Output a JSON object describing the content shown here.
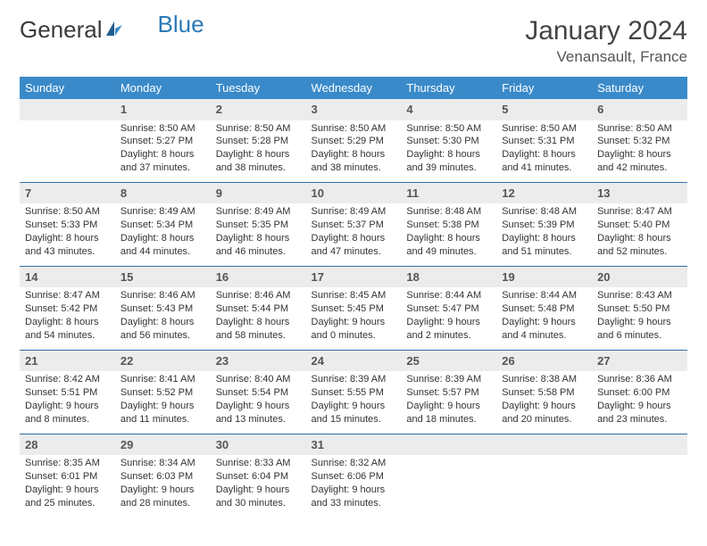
{
  "brand": {
    "part1": "General",
    "part2": "Blue"
  },
  "title": "January 2024",
  "location": "Venansault, France",
  "header_color": "#3a8ac9",
  "border_color": "#2a6ea8",
  "daynum_bg": "#ececec",
  "weekdays": [
    "Sunday",
    "Monday",
    "Tuesday",
    "Wednesday",
    "Thursday",
    "Friday",
    "Saturday"
  ],
  "weeks": [
    [
      null,
      {
        "n": "1",
        "sr": "8:50 AM",
        "ss": "5:27 PM",
        "dl": "8 hours and 37 minutes."
      },
      {
        "n": "2",
        "sr": "8:50 AM",
        "ss": "5:28 PM",
        "dl": "8 hours and 38 minutes."
      },
      {
        "n": "3",
        "sr": "8:50 AM",
        "ss": "5:29 PM",
        "dl": "8 hours and 38 minutes."
      },
      {
        "n": "4",
        "sr": "8:50 AM",
        "ss": "5:30 PM",
        "dl": "8 hours and 39 minutes."
      },
      {
        "n": "5",
        "sr": "8:50 AM",
        "ss": "5:31 PM",
        "dl": "8 hours and 41 minutes."
      },
      {
        "n": "6",
        "sr": "8:50 AM",
        "ss": "5:32 PM",
        "dl": "8 hours and 42 minutes."
      }
    ],
    [
      {
        "n": "7",
        "sr": "8:50 AM",
        "ss": "5:33 PM",
        "dl": "8 hours and 43 minutes."
      },
      {
        "n": "8",
        "sr": "8:49 AM",
        "ss": "5:34 PM",
        "dl": "8 hours and 44 minutes."
      },
      {
        "n": "9",
        "sr": "8:49 AM",
        "ss": "5:35 PM",
        "dl": "8 hours and 46 minutes."
      },
      {
        "n": "10",
        "sr": "8:49 AM",
        "ss": "5:37 PM",
        "dl": "8 hours and 47 minutes."
      },
      {
        "n": "11",
        "sr": "8:48 AM",
        "ss": "5:38 PM",
        "dl": "8 hours and 49 minutes."
      },
      {
        "n": "12",
        "sr": "8:48 AM",
        "ss": "5:39 PM",
        "dl": "8 hours and 51 minutes."
      },
      {
        "n": "13",
        "sr": "8:47 AM",
        "ss": "5:40 PM",
        "dl": "8 hours and 52 minutes."
      }
    ],
    [
      {
        "n": "14",
        "sr": "8:47 AM",
        "ss": "5:42 PM",
        "dl": "8 hours and 54 minutes."
      },
      {
        "n": "15",
        "sr": "8:46 AM",
        "ss": "5:43 PM",
        "dl": "8 hours and 56 minutes."
      },
      {
        "n": "16",
        "sr": "8:46 AM",
        "ss": "5:44 PM",
        "dl": "8 hours and 58 minutes."
      },
      {
        "n": "17",
        "sr": "8:45 AM",
        "ss": "5:45 PM",
        "dl": "9 hours and 0 minutes."
      },
      {
        "n": "18",
        "sr": "8:44 AM",
        "ss": "5:47 PM",
        "dl": "9 hours and 2 minutes."
      },
      {
        "n": "19",
        "sr": "8:44 AM",
        "ss": "5:48 PM",
        "dl": "9 hours and 4 minutes."
      },
      {
        "n": "20",
        "sr": "8:43 AM",
        "ss": "5:50 PM",
        "dl": "9 hours and 6 minutes."
      }
    ],
    [
      {
        "n": "21",
        "sr": "8:42 AM",
        "ss": "5:51 PM",
        "dl": "9 hours and 8 minutes."
      },
      {
        "n": "22",
        "sr": "8:41 AM",
        "ss": "5:52 PM",
        "dl": "9 hours and 11 minutes."
      },
      {
        "n": "23",
        "sr": "8:40 AM",
        "ss": "5:54 PM",
        "dl": "9 hours and 13 minutes."
      },
      {
        "n": "24",
        "sr": "8:39 AM",
        "ss": "5:55 PM",
        "dl": "9 hours and 15 minutes."
      },
      {
        "n": "25",
        "sr": "8:39 AM",
        "ss": "5:57 PM",
        "dl": "9 hours and 18 minutes."
      },
      {
        "n": "26",
        "sr": "8:38 AM",
        "ss": "5:58 PM",
        "dl": "9 hours and 20 minutes."
      },
      {
        "n": "27",
        "sr": "8:36 AM",
        "ss": "6:00 PM",
        "dl": "9 hours and 23 minutes."
      }
    ],
    [
      {
        "n": "28",
        "sr": "8:35 AM",
        "ss": "6:01 PM",
        "dl": "9 hours and 25 minutes."
      },
      {
        "n": "29",
        "sr": "8:34 AM",
        "ss": "6:03 PM",
        "dl": "9 hours and 28 minutes."
      },
      {
        "n": "30",
        "sr": "8:33 AM",
        "ss": "6:04 PM",
        "dl": "9 hours and 30 minutes."
      },
      {
        "n": "31",
        "sr": "8:32 AM",
        "ss": "6:06 PM",
        "dl": "9 hours and 33 minutes."
      },
      null,
      null,
      null
    ]
  ],
  "labels": {
    "sunrise": "Sunrise:",
    "sunset": "Sunset:",
    "daylight": "Daylight:"
  }
}
